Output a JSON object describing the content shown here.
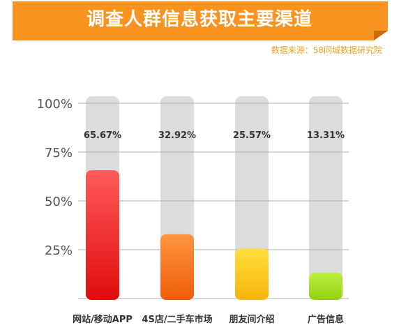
{
  "header": {
    "title": "调查人群信息获取主要渠道",
    "source": "数据来源：58同城数据研究院",
    "banner_color": "#f7931e"
  },
  "chart_data": {
    "type": "bar",
    "categories": [
      "网站/移动APP",
      "4S店/二手车市场",
      "朋友间介绍",
      "广告信息"
    ],
    "values": [
      65.67,
      32.92,
      25.57,
      13.31
    ],
    "data_labels": [
      "65.67%",
      "32.92%",
      "25.57%",
      "13.31%"
    ],
    "ylim": [
      0,
      100
    ],
    "yticks": [
      {
        "value": 100,
        "label": "100%"
      },
      {
        "value": 75,
        "label": "75%"
      },
      {
        "value": 50,
        "label": "50%"
      },
      {
        "value": 25,
        "label": "25%"
      }
    ],
    "grid": true,
    "colors": [
      [
        "#ff5a5a",
        "#e00c0c"
      ],
      [
        "#ff9440",
        "#ef5e0a"
      ],
      [
        "#ffdf3a",
        "#f6b40c"
      ],
      [
        "#bdef40",
        "#92d10f"
      ]
    ],
    "track_color": "#dcdcdc",
    "grid_color": "#b0b0b0"
  }
}
